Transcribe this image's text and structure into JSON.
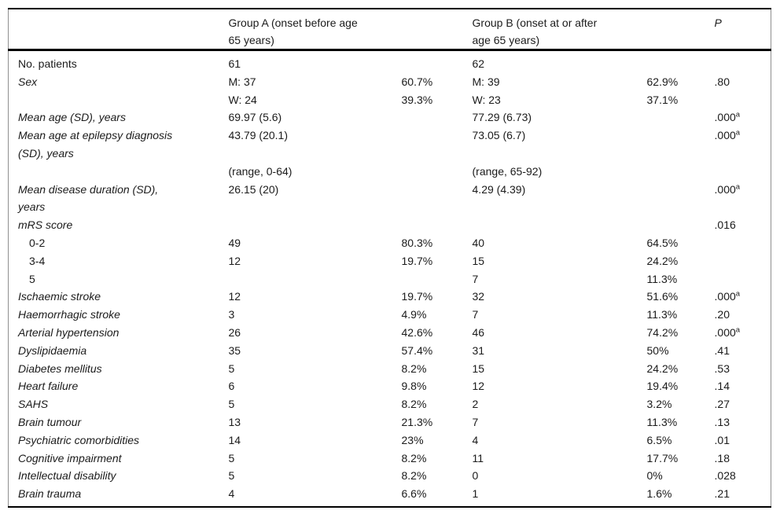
{
  "table": {
    "header": {
      "col_label": "",
      "group_a": "Group A (onset before age\n65 years)",
      "group_b": "Group B (onset at or after\nage 65 years)",
      "p": "P"
    },
    "rows": [
      {
        "label": "No. patients",
        "style": "plain",
        "a_n": "61",
        "a_pct": "",
        "b_n": "62",
        "b_pct": "",
        "p": "",
        "p_sup": ""
      },
      {
        "label": "Sex",
        "style": "italic",
        "a_n": "M: 37",
        "a_pct": "60.7%",
        "b_n": "M: 39",
        "b_pct": "62.9%",
        "p": ".80",
        "p_sup": ""
      },
      {
        "label": "",
        "style": "plain",
        "a_n": "W: 24",
        "a_pct": "39.3%",
        "b_n": "W: 23",
        "b_pct": "37.1%",
        "p": "",
        "p_sup": ""
      },
      {
        "label": "Mean age (SD), years",
        "style": "italic",
        "a_n": "69.97 (5.6)",
        "a_pct": "",
        "b_n": "77.29 (6.73)",
        "b_pct": "",
        "p": ".000",
        "p_sup": "a"
      },
      {
        "label": "Mean age at epilepsy diagnosis\n(SD), years",
        "style": "italic",
        "a_n": "43.79 (20.1)",
        "a_pct": "",
        "b_n": "73.05 (6.7)",
        "b_pct": "",
        "p": ".000",
        "p_sup": "a"
      },
      {
        "label": "",
        "style": "plain",
        "a_n": "(range, 0-64)",
        "a_pct": "",
        "b_n": "(range, 65-92)",
        "b_pct": "",
        "p": "",
        "p_sup": ""
      },
      {
        "label": "Mean disease duration (SD),\nyears",
        "style": "italic",
        "a_n": "26.15 (20)",
        "a_pct": "",
        "b_n": "4.29 (4.39)",
        "b_pct": "",
        "p": ".000",
        "p_sup": "a"
      },
      {
        "label": "mRS score",
        "style": "italic",
        "a_n": "",
        "a_pct": "",
        "b_n": "",
        "b_pct": "",
        "p": ".016",
        "p_sup": ""
      },
      {
        "label": "0-2",
        "style": "indent",
        "a_n": "49",
        "a_pct": "80.3%",
        "b_n": "40",
        "b_pct": "64.5%",
        "p": "",
        "p_sup": ""
      },
      {
        "label": "3-4",
        "style": "indent",
        "a_n": "12",
        "a_pct": "19.7%",
        "b_n": "15",
        "b_pct": "24.2%",
        "p": "",
        "p_sup": ""
      },
      {
        "label": "5",
        "style": "indent",
        "a_n": "",
        "a_pct": "",
        "b_n": "7",
        "b_pct": "11.3%",
        "p": "",
        "p_sup": ""
      },
      {
        "label": "Ischaemic stroke",
        "style": "italic",
        "a_n": "12",
        "a_pct": "19.7%",
        "b_n": "32",
        "b_pct": "51.6%",
        "p": ".000",
        "p_sup": "a"
      },
      {
        "label": "Haemorrhagic stroke",
        "style": "italic",
        "a_n": "3",
        "a_pct": "4.9%",
        "b_n": "7",
        "b_pct": "11.3%",
        "p": ".20",
        "p_sup": ""
      },
      {
        "label": "Arterial hypertension",
        "style": "italic",
        "a_n": "26",
        "a_pct": "42.6%",
        "b_n": "46",
        "b_pct": "74.2%",
        "p": ".000",
        "p_sup": "a"
      },
      {
        "label": "Dyslipidaemia",
        "style": "italic",
        "a_n": "35",
        "a_pct": "57.4%",
        "b_n": "31",
        "b_pct": "50%",
        "p": ".41",
        "p_sup": ""
      },
      {
        "label": "Diabetes mellitus",
        "style": "italic",
        "a_n": "5",
        "a_pct": "8.2%",
        "b_n": "15",
        "b_pct": "24.2%",
        "p": ".53",
        "p_sup": ""
      },
      {
        "label": "Heart failure",
        "style": "italic",
        "a_n": "6",
        "a_pct": "9.8%",
        "b_n": "12",
        "b_pct": "19.4%",
        "p": ".14",
        "p_sup": ""
      },
      {
        "label": "SAHS",
        "style": "italic",
        "a_n": "5",
        "a_pct": "8.2%",
        "b_n": "2",
        "b_pct": "3.2%",
        "p": ".27",
        "p_sup": ""
      },
      {
        "label": "Brain tumour",
        "style": "italic",
        "a_n": "13",
        "a_pct": "21.3%",
        "b_n": "7",
        "b_pct": "11.3%",
        "p": ".13",
        "p_sup": ""
      },
      {
        "label": "Psychiatric comorbidities",
        "style": "italic",
        "a_n": "14",
        "a_pct": "23%",
        "b_n": "4",
        "b_pct": "6.5%",
        "p": ".01",
        "p_sup": ""
      },
      {
        "label": "Cognitive impairment",
        "style": "italic",
        "a_n": "5",
        "a_pct": "8.2%",
        "b_n": "11",
        "b_pct": "17.7%",
        "p": ".18",
        "p_sup": ""
      },
      {
        "label": "Intellectual disability",
        "style": "italic",
        "a_n": "5",
        "a_pct": "8.2%",
        "b_n": "0",
        "b_pct": "0%",
        "p": ".028",
        "p_sup": ""
      },
      {
        "label": "Brain trauma",
        "style": "italic",
        "a_n": "4",
        "a_pct": "6.6%",
        "b_n": "1",
        "b_pct": "1.6%",
        "p": ".21",
        "p_sup": ""
      }
    ],
    "colors": {
      "text": "#1b1b1b",
      "rule_heavy": "#000000",
      "rule_side": "#8f8f8f",
      "background": "#ffffff"
    }
  }
}
